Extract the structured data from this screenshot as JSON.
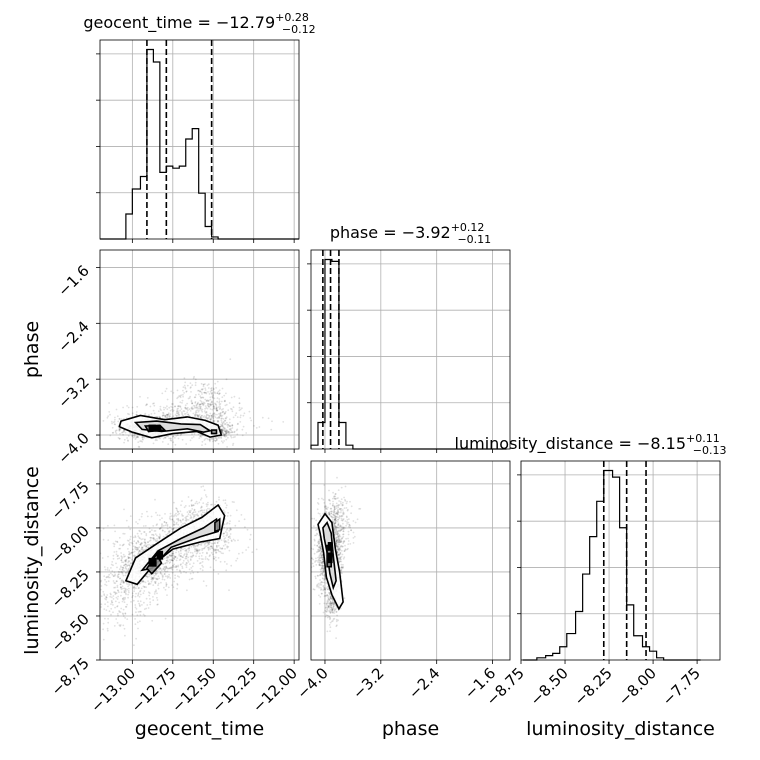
{
  "chart_data": {
    "type": "corner",
    "parameters": [
      "geocent_time",
      "phase",
      "luminosity_distance"
    ],
    "axis_labels": {
      "x": [
        "geocent_time",
        "phase",
        "luminosity_distance"
      ],
      "y": [
        "phase",
        "luminosity_distance"
      ]
    },
    "titles": [
      {
        "name": "geocent_time",
        "median": "−12.79",
        "plus": "+0.28",
        "minus": "−0.12"
      },
      {
        "name": "phase",
        "median": "−3.92",
        "plus": "+0.12",
        "minus": "−0.11"
      },
      {
        "name": "luminosity_distance",
        "median": "−8.15",
        "plus": "+0.11",
        "minus": "−0.13"
      }
    ],
    "ranges": {
      "geocent_time": [
        -13.2,
        -11.97
      ],
      "phase": [
        -4.2,
        -1.35
      ],
      "luminosity_distance": [
        -8.75,
        -7.62
      ]
    },
    "ticks": {
      "geocent_time": {
        "values": [
          -13.0,
          -12.75,
          -12.5,
          -12.25,
          -12.0
        ],
        "labels": [
          "−13.00",
          "−12.75",
          "−12.50",
          "−12.25",
          "−12.00"
        ]
      },
      "phase": {
        "values": [
          -4.0,
          -3.2,
          -2.4,
          -1.6
        ],
        "labels": [
          "−4.0",
          "−3.2",
          "−2.4",
          "−1.6"
        ]
      },
      "luminosity_distance": {
        "values": [
          -8.75,
          -8.5,
          -8.25,
          -8.0,
          -7.75
        ],
        "labels": [
          "−8.75",
          "−8.50",
          "−8.25",
          "−8.00",
          "−7.75"
        ]
      }
    },
    "quantiles": {
      "geocent_time": [
        -12.91,
        -12.79,
        -12.51
      ],
      "phase": [
        -4.03,
        -3.92,
        -3.8
      ],
      "luminosity_distance": [
        -8.28,
        -8.15,
        -8.04
      ]
    },
    "histograms": {
      "geocent_time": {
        "edges": [
          -13.2,
          -13.16,
          -13.12,
          -13.08,
          -13.04,
          -13.0,
          -12.95,
          -12.91,
          -12.87,
          -12.83,
          -12.79,
          -12.75,
          -12.71,
          -12.67,
          -12.63,
          -12.59,
          -12.55,
          -12.51,
          -12.47,
          -12.43,
          -12.39,
          -12.34,
          -12.3,
          -12.26,
          -12.22,
          -12.18,
          -12.14,
          -12.1,
          -12.06,
          -12.02,
          -11.97
        ],
        "counts": [
          0,
          0,
          0,
          0,
          12,
          24,
          30,
          91,
          85,
          32,
          35,
          34,
          35,
          48,
          53,
          22,
          6,
          1,
          0,
          0,
          0,
          0,
          0,
          0,
          0,
          0,
          0,
          0,
          0,
          0
        ]
      },
      "phase": {
        "edges": [
          -4.2,
          -4.1,
          -4.0,
          -3.9,
          -3.8,
          -3.7,
          -3.6,
          -3.5,
          -3.4,
          -3.3,
          -3.2,
          -3.1,
          -3.0,
          -2.9,
          -2.8,
          -2.7,
          -2.6,
          -2.5,
          -2.4,
          -2.3,
          -2.2,
          -2.1,
          -2.0,
          -1.9,
          -1.8,
          -1.7,
          -1.6,
          -1.5,
          -1.4
        ],
        "counts": [
          2,
          14,
          100,
          99,
          14,
          2,
          0,
          0,
          0,
          0,
          0,
          0,
          0,
          0,
          0,
          0,
          0,
          0,
          0,
          0,
          0,
          0,
          0,
          0,
          0,
          0,
          0,
          0
        ]
      },
      "luminosity_distance": {
        "edges": [
          -8.74,
          -8.7,
          -8.66,
          -8.61,
          -8.57,
          -8.53,
          -8.49,
          -8.44,
          -8.4,
          -8.36,
          -8.32,
          -8.28,
          -8.23,
          -8.19,
          -8.15,
          -8.11,
          -8.06,
          -8.02,
          -7.98,
          -7.94,
          -7.89,
          -7.85,
          -7.81,
          -7.77,
          -7.73
        ],
        "counts": [
          0,
          0,
          1,
          2,
          3,
          6,
          12,
          22,
          39,
          56,
          72,
          86,
          83,
          60,
          25,
          11,
          6,
          4,
          1,
          0,
          0,
          0,
          0,
          0
        ]
      }
    },
    "panels_2d": [
      {
        "x": "geocent_time",
        "y": "phase",
        "cloud": [
          {
            "cx": -12.87,
            "cy": -3.9,
            "sx": 0.1,
            "sy": 0.08,
            "n": 800
          },
          {
            "cx": -12.56,
            "cy": -3.6,
            "sx": 0.1,
            "sy": 0.2,
            "n": 400
          },
          {
            "cx": -12.48,
            "cy": -3.95,
            "sx": 0.05,
            "sy": 0.06,
            "n": 300
          },
          {
            "cx": -12.7,
            "cy": -3.8,
            "sx": 0.22,
            "sy": 0.14,
            "n": 400
          }
        ],
        "dark_cells": [
          {
            "x": -12.9,
            "y": -3.95,
            "w": 0.045,
            "h": 0.1
          },
          {
            "x": -12.86,
            "y": -3.95,
            "w": 0.04,
            "h": 0.08
          }
        ],
        "contours": [
          [
            [
              -13.07,
              -3.8
            ],
            [
              -12.95,
              -3.72
            ],
            [
              -12.8,
              -3.78
            ],
            [
              -12.66,
              -3.74
            ],
            [
              -12.55,
              -3.79
            ],
            [
              -12.47,
              -3.86
            ],
            [
              -12.45,
              -4.0
            ],
            [
              -12.52,
              -4.03
            ],
            [
              -12.6,
              -3.95
            ],
            [
              -12.75,
              -3.98
            ],
            [
              -12.88,
              -4.04
            ],
            [
              -13.0,
              -3.96
            ],
            [
              -13.08,
              -3.88
            ]
          ],
          [
            [
              -12.98,
              -3.82
            ],
            [
              -12.85,
              -3.8
            ],
            [
              -12.7,
              -3.84
            ],
            [
              -12.58,
              -3.85
            ],
            [
              -12.52,
              -3.94
            ],
            [
              -12.56,
              -3.96
            ],
            [
              -12.66,
              -3.91
            ],
            [
              -12.82,
              -3.95
            ],
            [
              -12.94,
              -3.92
            ]
          ],
          [
            [
              -12.92,
              -3.87
            ],
            [
              -12.83,
              -3.86
            ],
            [
              -12.8,
              -3.93
            ],
            [
              -12.9,
              -3.95
            ]
          ],
          [
            [
              -12.51,
              -3.93
            ],
            [
              -12.48,
              -3.93
            ],
            [
              -12.48,
              -3.98
            ],
            [
              -12.51,
              -3.98
            ]
          ]
        ]
      },
      {
        "x": "geocent_time",
        "y": "luminosity_distance",
        "cloud": [
          {
            "cx": -12.9,
            "cy": -8.2,
            "sx": 0.1,
            "sy": 0.07,
            "n": 700
          },
          {
            "cx": -12.7,
            "cy": -8.08,
            "sx": 0.18,
            "sy": 0.08,
            "n": 700
          },
          {
            "cx": -12.55,
            "cy": -7.98,
            "sx": 0.08,
            "sy": 0.08,
            "n": 400
          },
          {
            "cx": -13.05,
            "cy": -8.38,
            "sx": 0.1,
            "sy": 0.1,
            "n": 300
          }
        ],
        "dark_cells": [
          {
            "x": -12.9,
            "y": -8.22,
            "w": 0.05,
            "h": 0.05
          },
          {
            "x": -12.85,
            "y": -8.18,
            "w": 0.04,
            "h": 0.05
          }
        ],
        "contours": [
          [
            [
              -13.04,
              -8.3
            ],
            [
              -12.98,
              -8.17
            ],
            [
              -12.85,
              -8.09
            ],
            [
              -12.7,
              -8.0
            ],
            [
              -12.57,
              -7.94
            ],
            [
              -12.47,
              -7.87
            ],
            [
              -12.43,
              -7.93
            ],
            [
              -12.46,
              -8.06
            ],
            [
              -12.58,
              -8.08
            ],
            [
              -12.75,
              -8.12
            ],
            [
              -12.86,
              -8.2
            ],
            [
              -12.97,
              -8.32
            ]
          ],
          [
            [
              -12.94,
              -8.24
            ],
            [
              -12.84,
              -8.13
            ],
            [
              -12.7,
              -8.06
            ],
            [
              -12.56,
              -8.0
            ],
            [
              -12.48,
              -7.95
            ],
            [
              -12.47,
              -8.02
            ],
            [
              -12.58,
              -8.05
            ],
            [
              -12.76,
              -8.11
            ],
            [
              -12.88,
              -8.23
            ]
          ],
          [
            [
              -12.91,
              -8.23
            ],
            [
              -12.85,
              -8.15
            ],
            [
              -12.82,
              -8.2
            ],
            [
              -12.88,
              -8.26
            ]
          ],
          [
            [
              -12.49,
              -7.97
            ],
            [
              -12.46,
              -7.95
            ],
            [
              -12.46,
              -8.01
            ],
            [
              -12.49,
              -8.02
            ]
          ]
        ]
      },
      {
        "x": "phase",
        "y": "luminosity_distance",
        "cloud": [
          {
            "cx": -3.93,
            "cy": -8.15,
            "sx": 0.09,
            "sy": 0.1,
            "n": 1200
          },
          {
            "cx": -3.85,
            "cy": -7.95,
            "sx": 0.12,
            "sy": 0.08,
            "n": 300
          },
          {
            "cx": -3.9,
            "cy": -8.42,
            "sx": 0.06,
            "sy": 0.06,
            "n": 200
          }
        ],
        "dark_cells": [
          {
            "x": -3.96,
            "y": -8.2,
            "w": 0.07,
            "h": 0.06
          },
          {
            "x": -3.96,
            "y": -8.13,
            "w": 0.07,
            "h": 0.05
          }
        ],
        "contours": [
          [
            [
              -4.1,
              -7.98
            ],
            [
              -4.0,
              -7.92
            ],
            [
              -3.9,
              -7.97
            ],
            [
              -3.85,
              -8.12
            ],
            [
              -3.79,
              -8.25
            ],
            [
              -3.74,
              -8.42
            ],
            [
              -3.8,
              -8.46
            ],
            [
              -3.9,
              -8.38
            ],
            [
              -3.98,
              -8.28
            ],
            [
              -4.02,
              -8.14
            ],
            [
              -4.07,
              -8.03
            ]
          ],
          [
            [
              -4.03,
              -8.0
            ],
            [
              -3.97,
              -7.97
            ],
            [
              -3.91,
              -8.03
            ],
            [
              -3.88,
              -8.16
            ],
            [
              -3.84,
              -8.3
            ],
            [
              -3.88,
              -8.34
            ],
            [
              -3.93,
              -8.26
            ],
            [
              -3.97,
              -8.14
            ],
            [
              -4.01,
              -8.06
            ]
          ],
          [
            [
              -3.97,
              -8.1
            ],
            [
              -3.91,
              -8.1
            ],
            [
              -3.91,
              -8.22
            ],
            [
              -3.97,
              -8.22
            ]
          ]
        ]
      }
    ]
  }
}
